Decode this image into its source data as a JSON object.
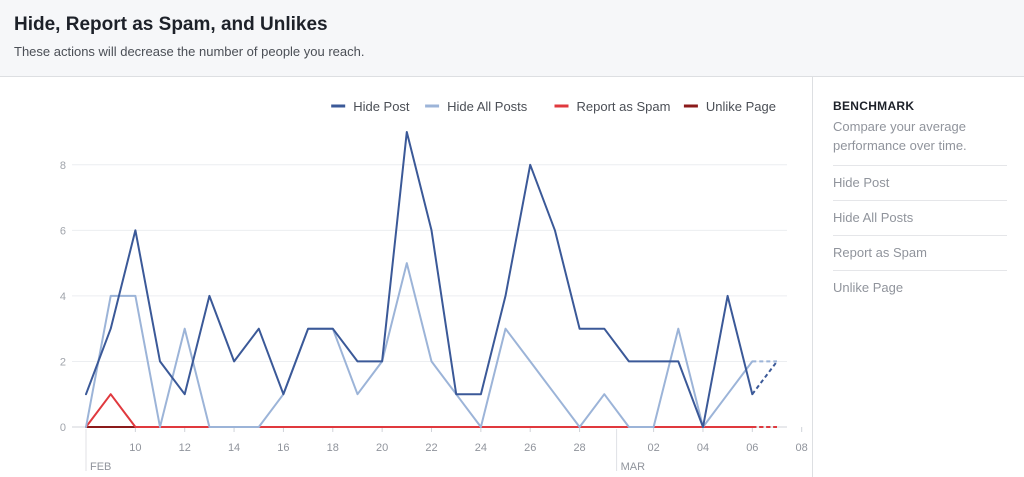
{
  "header": {
    "title": "Hide, Report as Spam, and Unlikes",
    "subtitle": "These actions will decrease the number of people you reach."
  },
  "sidebar": {
    "title": "BENCHMARK",
    "description": "Compare your average performance over time.",
    "items": [
      "Hide Post",
      "Hide All Posts",
      "Report as Spam",
      "Unlike Page"
    ]
  },
  "chart_data": {
    "type": "line",
    "x_tick_labels": [
      "10",
      "12",
      "14",
      "16",
      "18",
      "20",
      "22",
      "24",
      "26",
      "28",
      "02",
      "04",
      "06",
      "08"
    ],
    "x_tick_index": [
      2,
      4,
      6,
      8,
      10,
      12,
      14,
      16,
      18,
      20,
      23,
      25,
      27,
      29
    ],
    "month_labels": [
      {
        "label": "FEB",
        "index": 0
      },
      {
        "label": "MAR",
        "index": 21.5
      }
    ],
    "y_ticks": [
      0,
      2,
      4,
      6,
      8
    ],
    "ylim": [
      0,
      9
    ],
    "grid": true,
    "legend_position": "top-right",
    "series": [
      {
        "name": "Hide Post",
        "color": "#3b5998",
        "values": [
          1,
          3,
          6,
          2,
          1,
          4,
          2,
          3,
          1,
          3,
          3,
          2,
          2,
          9,
          6,
          1,
          1,
          4,
          8,
          6,
          3,
          3,
          2,
          2,
          2,
          0,
          4,
          1,
          2
        ]
      },
      {
        "name": "Hide All Posts",
        "color": "#9cb4d8",
        "values": [
          0,
          4,
          4,
          0,
          3,
          0,
          0,
          0,
          1,
          3,
          3,
          1,
          2,
          5,
          2,
          1,
          0,
          3,
          2,
          1,
          0,
          1,
          0,
          0,
          3,
          0,
          1,
          2,
          2
        ]
      },
      {
        "name": "Report as Spam",
        "color": "#e0393e",
        "values": [
          0,
          1,
          0,
          0,
          0,
          0,
          0,
          0,
          0,
          0,
          0,
          0,
          0,
          0,
          0,
          0,
          0,
          0,
          0,
          0,
          0,
          0,
          0,
          0,
          0,
          0,
          0,
          0,
          0
        ]
      },
      {
        "name": "Unlike Page",
        "color": "#8b1a1a",
        "values": [
          0,
          0,
          0,
          0,
          0,
          0,
          0,
          0,
          0,
          0,
          0,
          0,
          0,
          0,
          0,
          0,
          0,
          0,
          0,
          0,
          0,
          0,
          0,
          0,
          0,
          0,
          0,
          0,
          0
        ]
      }
    ]
  }
}
